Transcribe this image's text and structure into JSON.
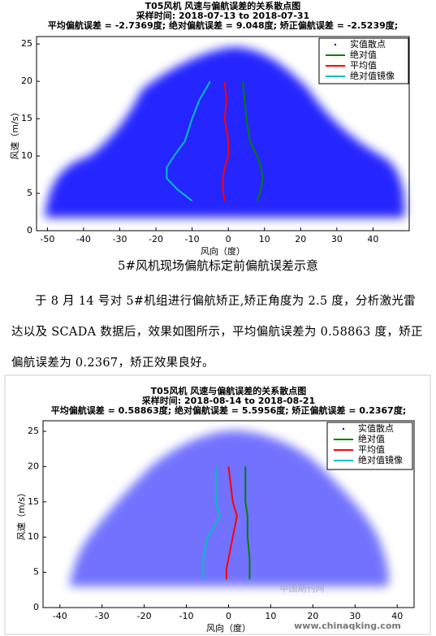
{
  "chart_data": [
    {
      "type": "scatter",
      "title": "T05风机 风速与偏航误差的关系散点图",
      "subtitle": "采样时间: 2018-07-13 to 2018-07-31",
      "stats": "平均偏航误差 = -2.7369度;  绝对偏航误差 = 9.048度;  矫正偏航误差 = -2.5239度;",
      "x_label": "风向（度）",
      "y_label": "风速（m/s）",
      "xlim": [
        -53,
        50
      ],
      "ylim": [
        0,
        26
      ],
      "xticks": [
        -50,
        -40,
        -30,
        -20,
        -10,
        0,
        10,
        20,
        30,
        40
      ],
      "yticks": [
        0,
        5,
        10,
        15,
        20,
        25
      ],
      "scatter": {
        "name": "实值散点",
        "color": "#0000ff"
      },
      "series": [
        {
          "name": "绝对值",
          "color": "#008000",
          "x": [
            8,
            9,
            9.5,
            9,
            8,
            6,
            5,
            4.5,
            4
          ],
          "y": [
            4,
            5.5,
            7,
            8.5,
            10,
            12,
            15,
            17.5,
            20
          ]
        },
        {
          "name": "平均值",
          "color": "#ff0000",
          "x": [
            -1,
            -1.5,
            -1.5,
            -1,
            0,
            0,
            -1,
            -0.5,
            -1
          ],
          "y": [
            4,
            5.5,
            7,
            8.5,
            10,
            12,
            15,
            17.5,
            20
          ]
        },
        {
          "name": "绝对值镜像",
          "color": "#00bfbf",
          "x": [
            -10,
            -14,
            -17,
            -17,
            -15,
            -12,
            -10,
            -8,
            -5
          ],
          "y": [
            4,
            5.5,
            7,
            8.5,
            10,
            12,
            15,
            17.5,
            20
          ]
        }
      ]
    },
    {
      "type": "scatter",
      "title": "T05风机 风速与偏航误差的关系散点图",
      "subtitle": "采样时间: 2018-08-14 to 2018-08-21",
      "stats": "平均偏航误差 = 0.58863度;  绝对偏航误差 = 5.5956度;  矫正偏航误差 = 0.2367度;",
      "x_label": "风向（度）",
      "y_label": "风速（m/s）",
      "xlim": [
        -44,
        44
      ],
      "ylim": [
        0,
        26.5
      ],
      "xticks": [
        -40,
        -30,
        -20,
        -10,
        0,
        10,
        20,
        30,
        40
      ],
      "yticks": [
        0,
        5,
        10,
        15,
        20,
        25
      ],
      "scatter": {
        "name": "实值散点",
        "color": "#0000ff"
      },
      "series": [
        {
          "name": "绝对值",
          "color": "#008000",
          "x": [
            5,
            5,
            5,
            4.5,
            4.5,
            4,
            4,
            4
          ],
          "y": [
            4,
            5.5,
            7,
            10,
            13,
            15,
            17.5,
            20
          ]
        },
        {
          "name": "平均值",
          "color": "#ff0000",
          "x": [
            -0.5,
            -0.5,
            0,
            1,
            2,
            1,
            0.5,
            0
          ],
          "y": [
            4,
            5.5,
            7,
            10,
            13,
            15,
            17.5,
            20
          ]
        },
        {
          "name": "绝对值镜像",
          "color": "#00bfbf",
          "x": [
            -6,
            -6,
            -6,
            -5,
            -2,
            -3,
            -3,
            -3
          ],
          "y": [
            4,
            5.5,
            7,
            10,
            13,
            15,
            17.5,
            20
          ]
        }
      ]
    }
  ],
  "caption": "5#风机现场偏航标定前偏航误差示意",
  "paragraph": "于 8 月 14 号对 5#机组进行偏航矫正,矫正角度为 2.5 度，分析激光雷达以及 SCADA 数据后，效果如图所示，平均偏航误差为 0.58863 度，矫正偏航误差为 0.2367，矫正效果良好。",
  "watermark": "中国期刊网",
  "url": "www.chinaqking.com"
}
